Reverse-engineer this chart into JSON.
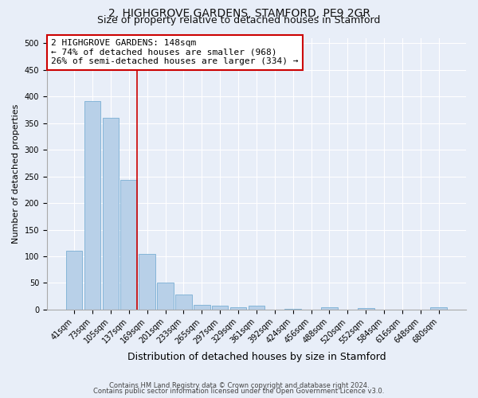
{
  "title1": "2, HIGHGROVE GARDENS, STAMFORD, PE9 2GR",
  "title2": "Size of property relative to detached houses in Stamford",
  "xlabel": "Distribution of detached houses by size in Stamford",
  "ylabel": "Number of detached properties",
  "categories": [
    "41sqm",
    "73sqm",
    "105sqm",
    "137sqm",
    "169sqm",
    "201sqm",
    "233sqm",
    "265sqm",
    "297sqm",
    "329sqm",
    "361sqm",
    "392sqm",
    "424sqm",
    "456sqm",
    "488sqm",
    "520sqm",
    "552sqm",
    "584sqm",
    "616sqm",
    "648sqm",
    "680sqm"
  ],
  "values": [
    110,
    392,
    360,
    244,
    105,
    50,
    29,
    9,
    8,
    5,
    7,
    0,
    2,
    0,
    4,
    0,
    3,
    0,
    0,
    0,
    4
  ],
  "bar_color": "#b8d0e8",
  "bar_edge_color": "#7aafd4",
  "ylim": [
    0,
    510
  ],
  "yticks": [
    0,
    50,
    100,
    150,
    200,
    250,
    300,
    350,
    400,
    450,
    500
  ],
  "property_line_color": "#cc0000",
  "annotation_text": "2 HIGHGROVE GARDENS: 148sqm\n← 74% of detached houses are smaller (968)\n26% of semi-detached houses are larger (334) →",
  "annotation_box_color": "#ffffff",
  "annotation_box_edge": "#cc0000",
  "footer1": "Contains HM Land Registry data © Crown copyright and database right 2024.",
  "footer2": "Contains public sector information licensed under the Open Government Licence v3.0.",
  "bg_color": "#e8eef8",
  "plot_bg_color": "#e8eef8",
  "grid_color": "#ffffff",
  "title_fontsize": 10,
  "subtitle_fontsize": 9,
  "tick_fontsize": 7,
  "ylabel_fontsize": 8,
  "xlabel_fontsize": 9,
  "footer_fontsize": 6,
  "annot_fontsize": 8
}
